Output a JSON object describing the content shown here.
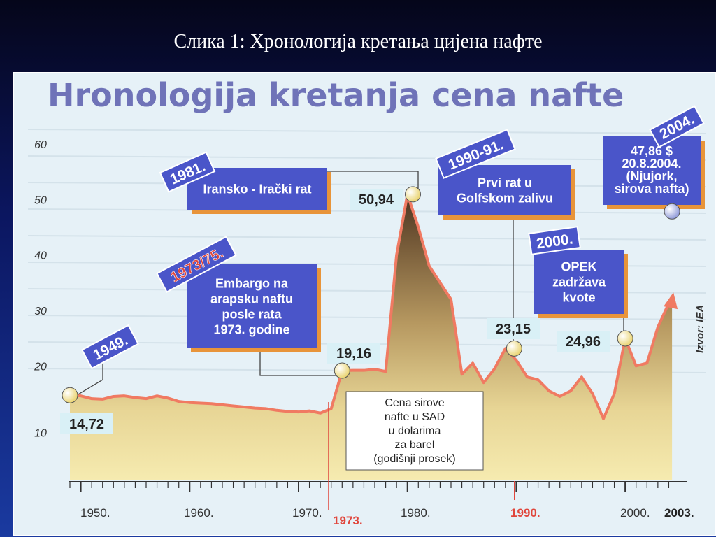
{
  "slide_title": "Слика 1:  Хронологија кретања цијена нафте",
  "chart_data": {
    "type": "area",
    "title": "Hronologija kretanja cena nafte",
    "source": "Izvor: IEA",
    "legend": "Cena sirove nafte u SAD u dolarima za barel (godišnji prosek)",
    "legend_lines": [
      "Cena sirove",
      "nafte u SAD",
      "u dolarima",
      "za barel",
      "(godišnji prosek)"
    ],
    "ylim": [
      0,
      60
    ],
    "xlim": [
      1949,
      2005
    ],
    "y_ticks": [
      "60",
      "50",
      "40",
      "30",
      "20",
      "10"
    ],
    "x_ticks": [
      {
        "label": "1950.",
        "year": 1950,
        "style": "normal"
      },
      {
        "label": "1960.",
        "year": 1960,
        "style": "normal"
      },
      {
        "label": "1970.",
        "year": 1970,
        "style": "normal"
      },
      {
        "label": "1973.",
        "year": 1973,
        "style": "red"
      },
      {
        "label": "1980.",
        "year": 1980,
        "style": "normal"
      },
      {
        "label": "1990.",
        "year": 1990,
        "style": "red"
      },
      {
        "label": "2000.",
        "year": 2000,
        "style": "normal"
      },
      {
        "label": "2003.",
        "year": 2003,
        "style": "bold"
      }
    ],
    "series": [
      {
        "x": [
          1949,
          1950,
          1951,
          1952,
          1953,
          1954,
          1955,
          1956,
          1957,
          1958,
          1959,
          1960,
          1961,
          1962,
          1963,
          1964,
          1965,
          1966,
          1967,
          1968,
          1969,
          1970,
          1971,
          1972,
          1973,
          1974,
          1975,
          1976,
          1977,
          1978,
          1979,
          1980,
          1981,
          1982,
          1983,
          1984,
          1985,
          1986,
          1987,
          1988,
          1989,
          1990,
          1991,
          1992,
          1993,
          1994,
          1995,
          1996,
          1997,
          1998,
          1999,
          2000,
          2001,
          2002,
          2003
        ],
        "y": [
          14.72,
          14.6,
          14.1,
          14.0,
          14.5,
          14.6,
          14.3,
          14.1,
          14.6,
          14.2,
          13.6,
          13.4,
          13.3,
          13.2,
          13.0,
          12.8,
          12.6,
          12.4,
          12.3,
          12.0,
          11.8,
          11.7,
          11.9,
          11.5,
          12.3,
          19.16,
          19.2,
          19.2,
          19.4,
          19.0,
          40.0,
          50.94,
          45.0,
          38.0,
          35.0,
          32.0,
          18.5,
          20.5,
          17.0,
          19.5,
          23.15,
          21.0,
          18.0,
          17.5,
          15.5,
          14.5,
          15.5,
          18.0,
          15.0,
          10.5,
          15.0,
          24.96,
          20.0,
          20.5,
          27.0
        ]
      }
    ],
    "arrow_end": {
      "x": 2004.3,
      "y": 32.5
    },
    "markers": [
      {
        "x": 1949,
        "y": 14.72,
        "label": "14,72",
        "color": "#f6efb0"
      },
      {
        "x": 1974,
        "y": 19.16,
        "label": "19,16",
        "color": "#f6efb0"
      },
      {
        "x": 1980.5,
        "y": 50.94,
        "label": "50,94",
        "color": "#f6efb0"
      },
      {
        "x": 1989.8,
        "y": 23.15,
        "label": "23,15",
        "color": "#f6efb0"
      },
      {
        "x": 2000,
        "y": 24.96,
        "label": "24,96",
        "color": "#f6efb0"
      },
      {
        "x": 2004.3,
        "y": 47.86,
        "label": "",
        "color": "#aab3e0"
      }
    ],
    "annotations": [
      {
        "tag": "1949.",
        "lines": []
      },
      {
        "tag": "1973/75.",
        "lines": [
          "Embargo na",
          "arapsku naftu",
          "posle rata",
          "1973. godine"
        ]
      },
      {
        "tag": "1981.",
        "lines": [
          "Iransko - Irački rat"
        ]
      },
      {
        "tag": "1990-91.",
        "lines": [
          "Prvi rat u",
          "Golfskom zalivu"
        ]
      },
      {
        "tag": "2000.",
        "lines": [
          "OPEK",
          "zadržava",
          "kvote"
        ]
      },
      {
        "tag": "2004.",
        "lines": [
          "47,86 $",
          "20.8.2004.",
          "(Njujork,",
          "sirova nafta)"
        ]
      }
    ],
    "colors": {
      "area_top": "#5a3d22",
      "area_bottom": "#f4e8a6",
      "line": "#f07a62",
      "box": "#4a55c9",
      "box_shadow": "#e8943a",
      "tag_outline": "#e0463c"
    }
  }
}
